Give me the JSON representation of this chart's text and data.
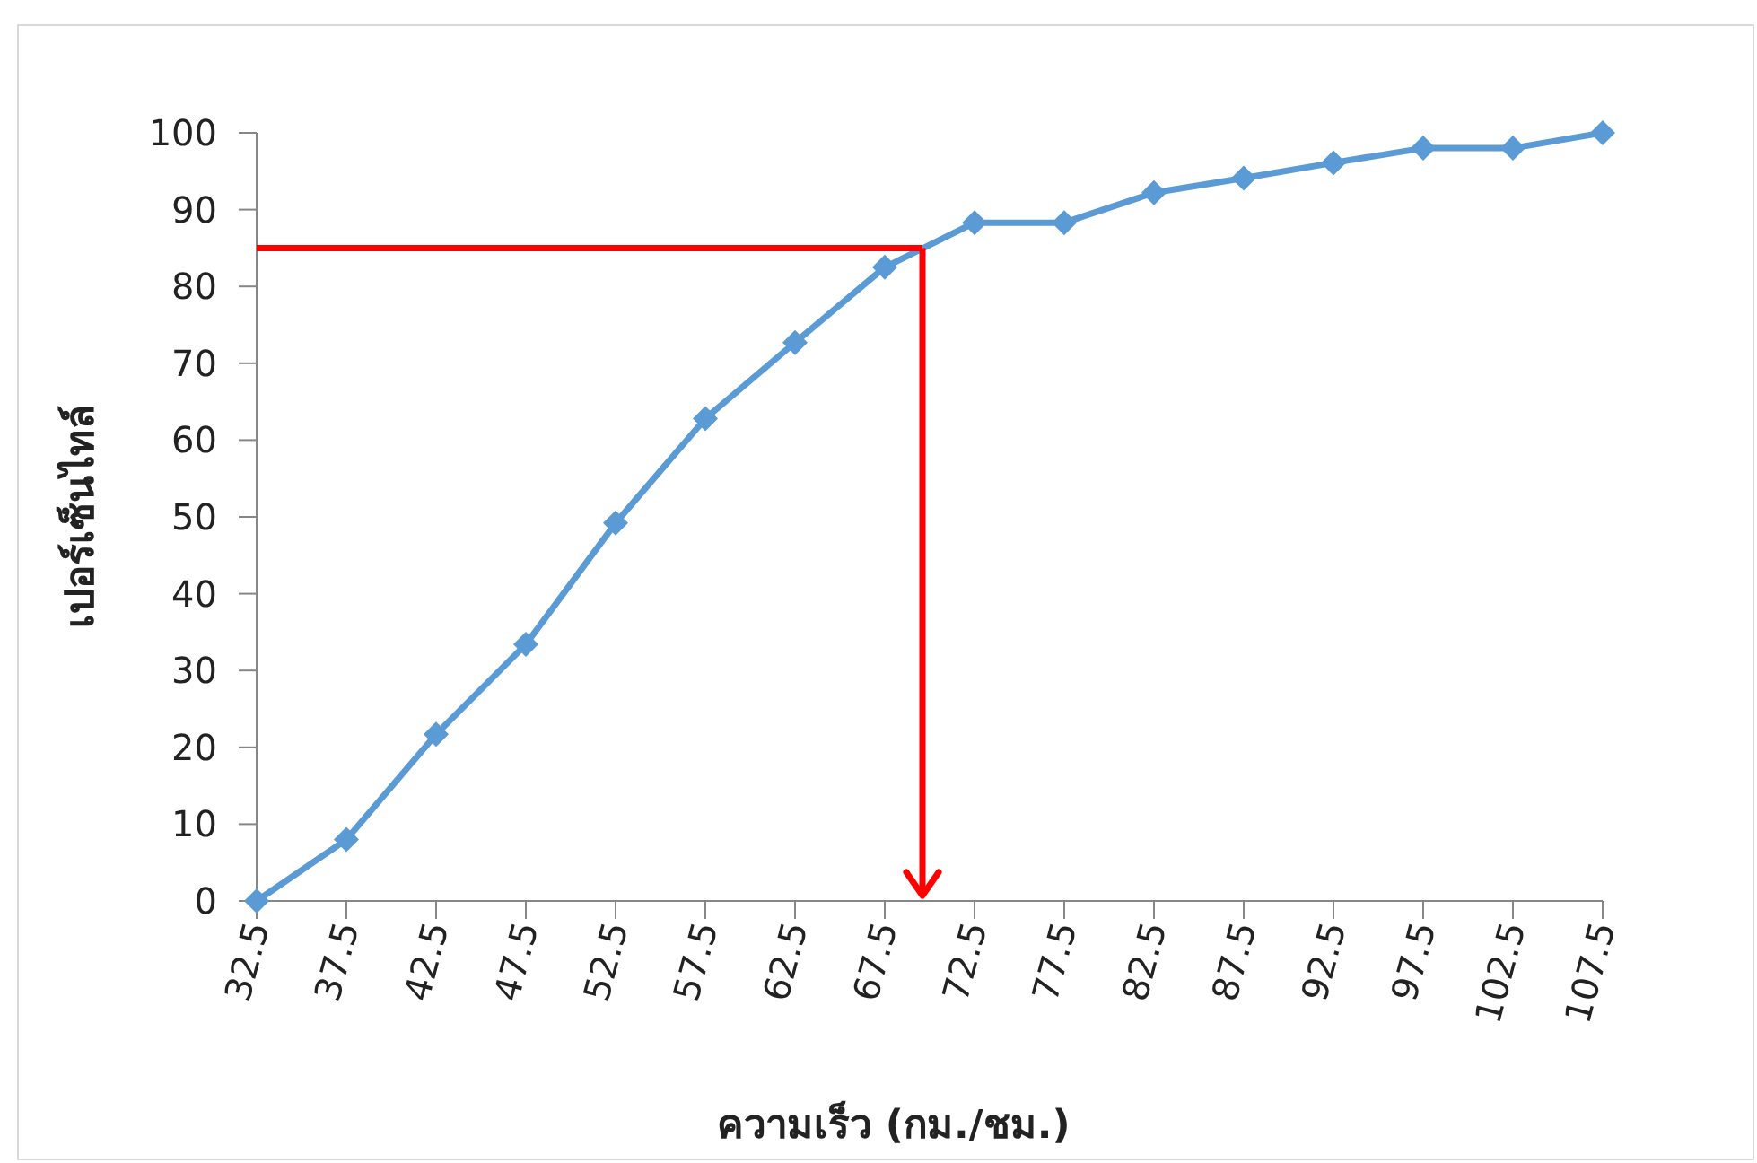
{
  "chart_data": {
    "type": "line",
    "xlabel": "ความเร็ว (กม./ชม.)",
    "ylabel": "เปอร์เซ็นไทล์",
    "x": [
      32.5,
      37.5,
      42.5,
      47.5,
      52.5,
      57.5,
      62.5,
      67.5,
      72.5,
      77.5,
      82.5,
      87.5,
      92.5,
      97.5,
      102.5,
      107.5
    ],
    "series": [
      {
        "color": "#5b9bd5",
        "values": [
          0,
          8.0,
          21.7,
          33.4,
          49.2,
          62.8,
          72.7,
          82.5,
          88.3,
          88.3,
          92.2,
          94.1,
          96.1,
          98.0,
          98.0,
          100
        ]
      }
    ],
    "marker": "diamond",
    "line_style": "solid",
    "xlim": [
      32.5,
      107.5
    ],
    "ylim": [
      0,
      100
    ],
    "xticks": [
      32.5,
      37.5,
      42.5,
      47.5,
      52.5,
      57.5,
      62.5,
      67.5,
      72.5,
      77.5,
      82.5,
      87.5,
      92.5,
      97.5,
      102.5,
      107.5
    ],
    "yticks": [
      0,
      10,
      20,
      30,
      40,
      50,
      60,
      70,
      80,
      90,
      100
    ],
    "ref_lines": [
      {
        "axis": "y",
        "value": 85,
        "color": "#ff0000"
      },
      {
        "axis": "x",
        "value": 69.6,
        "color": "#ff0000"
      }
    ]
  }
}
